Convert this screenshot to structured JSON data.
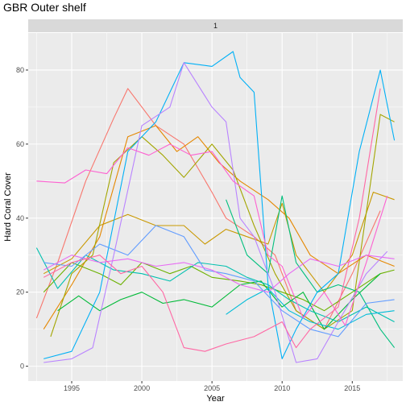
{
  "chart_data": {
    "type": "line",
    "title": "GBR Outer shelf",
    "facet_label": "1",
    "xlabel": "Year",
    "ylabel": "Hard Coral Cover",
    "xlim": [
      1991.9,
      2018.6
    ],
    "ylim": [
      -4,
      90
    ],
    "x_ticks": [
      1995,
      2000,
      2005,
      2010,
      2015
    ],
    "y_ticks": [
      0,
      20,
      40,
      60,
      80
    ],
    "panel_background": "#ebebeb",
    "strip_background": "#d9d9d9",
    "grid": true,
    "legend": "none",
    "series": [
      {
        "color": "#f8766d",
        "x": [
          1992.5,
          1994,
          1996,
          1998,
          1999,
          2001,
          2003,
          2005,
          2006,
          2008,
          2009.5,
          2011,
          2013,
          2015,
          2017
        ],
        "y": [
          13,
          28,
          50,
          67,
          75,
          65,
          60,
          47,
          40,
          35,
          30,
          15,
          10,
          25,
          42
        ]
      },
      {
        "color": "#e58700",
        "x": [
          1993,
          1995,
          1997,
          1999,
          2001,
          2002.5,
          2004,
          2005.5,
          2007,
          2009,
          2010.5,
          2012,
          2014,
          2016,
          2018
        ],
        "y": [
          10,
          22,
          35,
          62,
          65,
          58,
          62,
          55,
          50,
          45,
          40,
          30,
          25,
          30,
          27
        ]
      },
      {
        "color": "#c99800",
        "x": [
          1993,
          1995,
          1997,
          1999,
          2001,
          2003,
          2004.5,
          2006,
          2007.5,
          2009,
          2010,
          2011,
          2013,
          2015,
          2016.5,
          2018
        ],
        "y": [
          25,
          29,
          38,
          41,
          38,
          38,
          33,
          37,
          35,
          33,
          44,
          30,
          20,
          30,
          47,
          45
        ]
      },
      {
        "color": "#a3a500",
        "x": [
          1993.5,
          1995,
          1996.5,
          1998,
          2000,
          2001.5,
          2003,
          2005,
          2006.5,
          2008,
          2009.5,
          2011,
          2013,
          2015,
          2017,
          2018
        ],
        "y": [
          8,
          25,
          30,
          55,
          62,
          57,
          51,
          60,
          53,
          38,
          25,
          15,
          10,
          15,
          68,
          66
        ]
      },
      {
        "color": "#6bb100",
        "x": [
          1993,
          1995,
          1997,
          1998.5,
          2000,
          2002,
          2003.5,
          2005,
          2007,
          2008.5,
          2010,
          2011.5,
          2013,
          2015,
          2017,
          2018
        ],
        "y": [
          20,
          28,
          25,
          22,
          28,
          25,
          27,
          24,
          23,
          22,
          20,
          18,
          15,
          20,
          25,
          26
        ]
      },
      {
        "color": "#00ba38",
        "x": [
          1994,
          1995.5,
          1997,
          1998.5,
          2000,
          2001.5,
          2003,
          2005,
          2007,
          2008.5,
          2010,
          2011.5,
          2013,
          2015,
          2017
        ],
        "y": [
          15,
          19,
          15,
          18,
          20,
          17,
          18,
          16,
          22,
          23,
          16,
          20,
          10,
          18,
          25
        ]
      },
      {
        "color": "#00bf7d",
        "x": [
          2006,
          2007.5,
          2009,
          2010,
          2011,
          2012.5,
          2014,
          2015.5,
          2017,
          2018
        ],
        "y": [
          45,
          30,
          25,
          46,
          28,
          20,
          22,
          20,
          10,
          5
        ]
      },
      {
        "color": "#00c0af",
        "x": [
          1992.5,
          1994,
          1996,
          1998,
          2000,
          2002,
          2004,
          2006,
          2007.5,
          2009,
          2010.5,
          2012,
          2014,
          2016,
          2018
        ],
        "y": [
          32,
          21,
          30,
          26,
          25,
          23,
          28,
          27,
          24,
          22,
          18,
          15,
          12,
          16,
          12
        ]
      },
      {
        "color": "#00bcd8",
        "x": [
          2006,
          2007.5,
          2009,
          2010.5,
          2012,
          2014,
          2016,
          2018
        ],
        "y": [
          14,
          18,
          21,
          15,
          12,
          10,
          14,
          15
        ]
      },
      {
        "color": "#00b0f6",
        "x": [
          1993,
          1995,
          1997,
          1999,
          2001,
          2003,
          2005,
          2006.5,
          2007,
          2008,
          2009,
          2010,
          2011,
          2012.5,
          2014,
          2015.5,
          2017,
          2018
        ],
        "y": [
          2,
          4,
          20,
          58,
          66,
          82,
          81,
          85,
          78,
          74,
          22,
          2,
          10,
          20,
          25,
          58,
          80,
          61
        ]
      },
      {
        "color": "#619cff",
        "x": [
          1993,
          1995,
          1997,
          1999,
          2001,
          2003,
          2004.5,
          2006,
          2008,
          2010,
          2012,
          2014,
          2016,
          2018
        ],
        "y": [
          28,
          27,
          33,
          30,
          38,
          35,
          26,
          25,
          23,
          15,
          10,
          8,
          17,
          18
        ]
      },
      {
        "color": "#b983ff",
        "x": [
          1993,
          1995,
          1996.5,
          1998,
          2000,
          2002,
          2003,
          2004,
          2005,
          2006,
          2007,
          2008,
          2009.5,
          2011,
          2012.5,
          2014,
          2016,
          2017.5
        ],
        "y": [
          1,
          2,
          5,
          30,
          65,
          70,
          82,
          76,
          70,
          66,
          40,
          35,
          20,
          1,
          2,
          12,
          25,
          31
        ]
      },
      {
        "color": "#e76bf3",
        "x": [
          1993,
          1995,
          1997,
          1999,
          2001,
          2003,
          2005,
          2007,
          2009,
          2010.5,
          2012,
          2014,
          2016,
          2018
        ],
        "y": [
          26,
          30,
          28,
          29,
          27,
          28,
          26,
          22,
          20,
          25,
          29,
          27,
          30,
          29
        ]
      },
      {
        "color": "#fd61d1",
        "x": [
          1992.5,
          1994.5,
          1996,
          1997.5,
          1999,
          2000.5,
          2002,
          2003.5,
          2005,
          2006.5,
          2008,
          2009,
          2010,
          2011.5,
          2013,
          2014.5,
          2016,
          2017.5
        ],
        "y": [
          50,
          49.5,
          53,
          52,
          59,
          57,
          60,
          57,
          58,
          50,
          46,
          30,
          27,
          13,
          20,
          11,
          28,
          46
        ]
      },
      {
        "color": "#ff67a4",
        "x": [
          1993,
          1995,
          1997,
          1998.5,
          2000,
          2001.5,
          2003,
          2004.5,
          2006,
          2008,
          2010,
          2011,
          2012,
          2014,
          2015.5,
          2017
        ],
        "y": [
          24,
          28,
          30,
          25,
          27,
          20,
          5,
          4,
          6,
          8,
          12,
          5,
          10,
          16,
          40,
          75
        ]
      }
    ]
  }
}
